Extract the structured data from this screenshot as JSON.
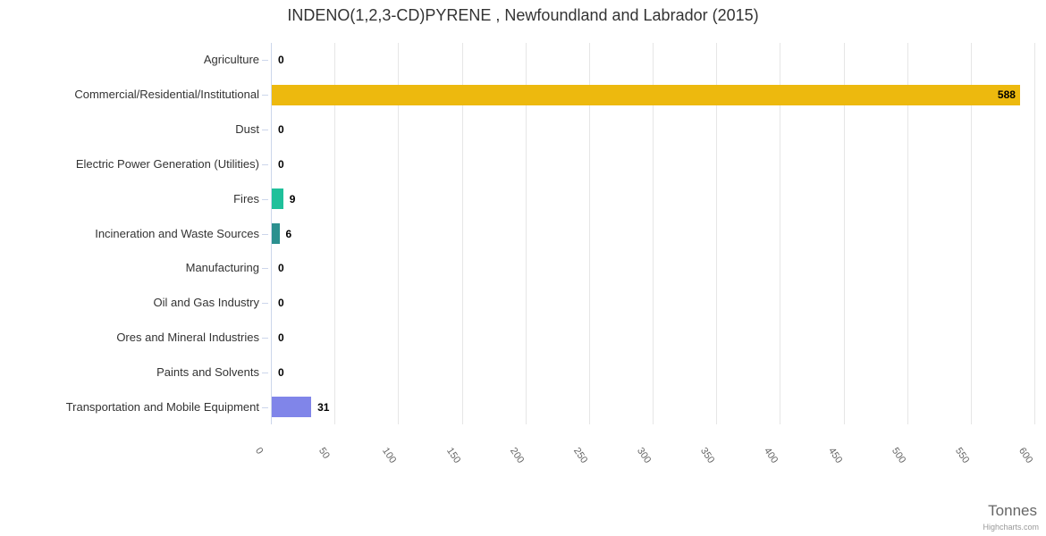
{
  "chart_data": {
    "type": "bar",
    "orientation": "horizontal",
    "title": "INDENO(1,2,3-CD)PYRENE , Newfoundland and Labrador (2015)",
    "xlabel": "Tonnes",
    "xlim": [
      0,
      600
    ],
    "x_ticks": [
      0,
      50,
      100,
      150,
      200,
      250,
      300,
      350,
      400,
      450,
      500,
      550,
      600
    ],
    "x_tick_labels": [
      "0",
      "50",
      "100",
      "150",
      "200",
      "250",
      "300",
      "350",
      "400",
      "450",
      "500",
      "550",
      "600"
    ],
    "grid": true,
    "legend": false,
    "categories": [
      "Agriculture",
      "Commercial/Residential/Institutional",
      "Dust",
      "Electric Power Generation (Utilities)",
      "Fires",
      "Incineration and Waste Sources",
      "Manufacturing",
      "Oil and Gas Industry",
      "Ores and Mineral Industries",
      "Paints and Solvents",
      "Transportation and Mobile Equipment"
    ],
    "values": [
      0,
      588,
      0,
      0,
      9,
      6,
      0,
      0,
      0,
      0,
      31
    ],
    "data_labels": [
      "0",
      "588",
      "0",
      "0",
      "9",
      "6",
      "0",
      "0",
      "0",
      "0",
      "31"
    ],
    "bar_colors": [
      null,
      "#EDB90E",
      null,
      null,
      "#20C09B",
      "#2B908F",
      null,
      null,
      null,
      null,
      "#8085E9"
    ]
  },
  "credits": "Highcharts.com",
  "colors": {
    "background": "#FFFFFF",
    "axis_line": "#CCD6EB",
    "grid_line": "#E6E6E6",
    "title_text": "#333333",
    "category_label": "#333333",
    "tick_label": "#666666",
    "axis_title": "#666666",
    "data_label": "#000000",
    "credits_text": "#999999"
  }
}
